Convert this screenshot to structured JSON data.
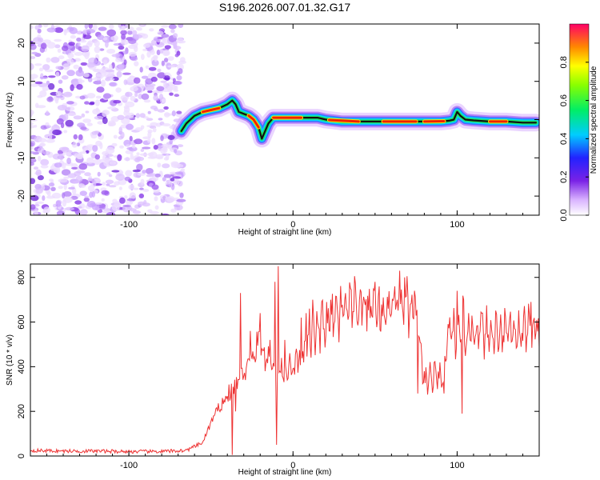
{
  "chart_data": [
    {
      "type": "heatmap",
      "title": "S196.2026.007.01.32.G17",
      "xlabel": "Height of straight line (km)",
      "ylabel": "Frequency (Hz)",
      "xlim": [
        -160,
        150
      ],
      "ylim": [
        -25,
        25
      ],
      "xticks": [
        -100,
        0,
        100
      ],
      "yticks": [
        -20,
        -10,
        0,
        10,
        20
      ],
      "noise_region_x": [
        -160,
        -67
      ],
      "ridge": {
        "x": [
          -68,
          -65,
          -60,
          -55,
          -50,
          -45,
          -40,
          -37,
          -35,
          -33,
          -30,
          -27,
          -24,
          -21,
          -19,
          -17,
          -15,
          -12,
          -8,
          -3,
          5,
          15,
          20,
          30,
          50,
          70,
          90,
          95,
          98,
          100,
          102,
          105,
          110,
          120,
          130,
          140,
          148
        ],
        "y": [
          -3,
          -1,
          1,
          2,
          2.5,
          3,
          4,
          5,
          4,
          2,
          1.5,
          1,
          0,
          -2,
          -5,
          -3,
          -1,
          0.5,
          0.5,
          0.5,
          0.5,
          0.5,
          0,
          -0.5,
          -0.5,
          -0.5,
          -0.5,
          -0.3,
          0,
          2,
          1,
          0,
          -0.2,
          -0.5,
          -0.5,
          -0.8,
          -0.8
        ]
      },
      "colorbar": {
        "label": "Normalized spectral amplitude",
        "ticks": [
          0.0,
          0.2,
          0.4,
          0.6,
          0.8
        ],
        "range": [
          0,
          1
        ]
      }
    },
    {
      "type": "line",
      "xlabel": "Height of straight line (km)",
      "ylabel": "SNR (10 * v/v)",
      "xlim": [
        -160,
        150
      ],
      "ylim": [
        0,
        860
      ],
      "xticks": [
        -100,
        0,
        100
      ],
      "yticks": [
        0,
        200,
        400,
        600,
        800
      ],
      "color": "#ee3333",
      "series": [
        {
          "name": "SNR",
          "x": [
            -160,
            -140,
            -120,
            -100,
            -80,
            -65,
            -55,
            -50,
            -45,
            -40,
            -35,
            -30,
            -25,
            -22,
            -20,
            -18,
            -15,
            -12,
            -10,
            -8,
            -5,
            0,
            5,
            10,
            15,
            20,
            25,
            30,
            35,
            40,
            45,
            50,
            55,
            60,
            65,
            70,
            74,
            76,
            78,
            80,
            85,
            90,
            92,
            94,
            98,
            102,
            104,
            106,
            110,
            115,
            120,
            125,
            130,
            135,
            140,
            145,
            150
          ],
          "y": [
            25,
            22,
            22,
            20,
            20,
            25,
            60,
            150,
            220,
            260,
            320,
            380,
            430,
            500,
            520,
            470,
            440,
            400,
            380,
            420,
            360,
            400,
            440,
            500,
            560,
            600,
            620,
            640,
            660,
            670,
            680,
            660,
            650,
            670,
            680,
            650,
            640,
            600,
            420,
            330,
            350,
            340,
            330,
            560,
            540,
            520,
            600,
            540,
            580,
            560,
            540,
            560,
            580,
            560,
            560,
            570,
            560
          ],
          "spikes": {
            "x": [
              -53,
              -48,
              -43,
              -39,
              -37,
              -35,
              -32,
              -29,
              -26,
              -23,
              -20,
              -17,
              -14,
              -11,
              -10,
              -9,
              -8,
              -5,
              -2,
              2,
              5,
              8,
              10,
              12,
              50,
              62,
              65,
              68,
              74,
              76,
              80,
              88,
              92,
              100,
              103,
              107,
              145
            ],
            "y": [
              90,
              180,
              260,
              320,
              5,
              200,
              730,
              340,
              560,
              420,
              640,
              380,
              520,
              780,
              50,
              850,
              380,
              520,
              460,
              480,
              620,
              640,
              660,
              700,
              780,
              760,
              830,
              800,
              740,
              280,
              380,
              300,
              280,
              740,
              190,
              640,
              690
            ]
          }
        }
      ]
    }
  ]
}
